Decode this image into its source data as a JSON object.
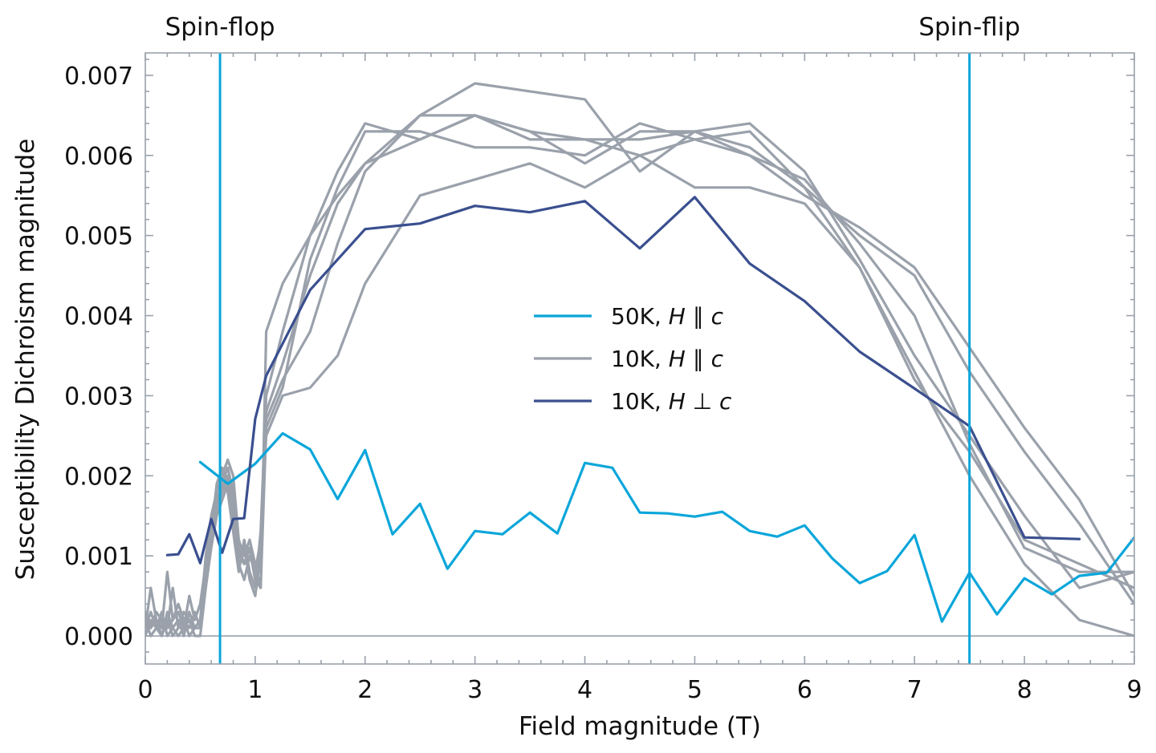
{
  "chart_data": {
    "type": "line",
    "xlabel": "Field magnitude (T)",
    "ylabel": "Susceptibility Dichroism magnitude",
    "xlim": [
      0,
      9
    ],
    "ylim": [
      -0.00035,
      0.00728
    ],
    "xticks": [
      0,
      1,
      2,
      3,
      4,
      5,
      6,
      7,
      8,
      9
    ],
    "xtick_labels": [
      "0",
      "1",
      "2",
      "3",
      "4",
      "5",
      "6",
      "7",
      "8",
      "9"
    ],
    "yticks": [
      0,
      0.001,
      0.002,
      0.003,
      0.004,
      0.005,
      0.006,
      0.007
    ],
    "ytick_labels": [
      "0.000",
      "0.001",
      "0.002",
      "0.003",
      "0.004",
      "0.005",
      "0.006",
      "0.007"
    ],
    "grid": false,
    "legend_position": "center",
    "legend": [
      {
        "text": "50K, ",
        "math": "H ∥ c",
        "color": "#0aa6da"
      },
      {
        "text": "10K, ",
        "math": "H ∥ c",
        "color": "#9aa1ab"
      },
      {
        "text": "10K, ",
        "math": "H ⊥ c",
        "color": "#3a4f8f"
      }
    ],
    "annotations": [
      {
        "text": "Spin-flop",
        "x": 0.68
      },
      {
        "text": "Spin-flip",
        "x": 7.5
      }
    ],
    "vlines": [
      {
        "x": 0.68,
        "color": "#0aa6da"
      },
      {
        "x": 7.5,
        "color": "#0aa6da"
      }
    ],
    "hline": {
      "y": 0,
      "color": "#9aa1ab"
    },
    "series": [
      {
        "group": "10K, H || c",
        "color": "#9aa1ab",
        "x": [
          0,
          0.05,
          0.1,
          0.15,
          0.2,
          0.25,
          0.3,
          0.35,
          0.4,
          0.45,
          0.5,
          0.55,
          0.6,
          0.65,
          0.7,
          0.75,
          0.8,
          0.85,
          0.9,
          0.95,
          1.0,
          1.05,
          1.1,
          1.25,
          1.5,
          1.75,
          2.0,
          2.5,
          3.0,
          3.5,
          4.0,
          4.5,
          5.0,
          5.5,
          6.0,
          6.5,
          7.0,
          7.5,
          8.0,
          8.5,
          9.0
        ],
        "y": [
          0.0001,
          0.0006,
          0.0002,
          0.0001,
          0.0008,
          0.0002,
          0.0003,
          0.0001,
          0.0005,
          0.0002,
          0.0004,
          0.0009,
          0.0012,
          0.0016,
          0.0019,
          0.0021,
          0.0018,
          0.0011,
          0.0009,
          0.0011,
          0.0007,
          0.0006,
          0.0026,
          0.0031,
          0.0047,
          0.0056,
          0.0063,
          0.0063,
          0.0061,
          0.0061,
          0.006,
          0.0064,
          0.0062,
          0.006,
          0.0057,
          0.0049,
          0.004,
          0.0024,
          0.0011,
          0.0008,
          0.0008
        ]
      },
      {
        "group": "10K, H || c",
        "color": "#9aa1ab",
        "x": [
          0,
          0.05,
          0.1,
          0.15,
          0.2,
          0.25,
          0.3,
          0.35,
          0.4,
          0.45,
          0.5,
          0.55,
          0.6,
          0.65,
          0.7,
          0.75,
          0.8,
          0.85,
          0.9,
          0.95,
          1.0,
          1.05,
          1.1,
          1.25,
          1.5,
          1.75,
          2.0,
          2.5,
          3.0,
          3.5,
          4.0,
          4.5,
          5.0,
          5.5,
          6.0,
          6.5,
          7.0,
          7.5,
          8.0,
          8.5,
          9.0
        ],
        "y": [
          0.0002,
          0.0001,
          0.0003,
          0.0002,
          0.0001,
          0.0006,
          0.0001,
          0.0003,
          0.0002,
          0.0001,
          0.0002,
          0.001,
          0.0015,
          0.0018,
          0.002,
          0.0022,
          0.002,
          0.0012,
          0.001,
          0.0012,
          0.0009,
          0.0006,
          0.0038,
          0.0044,
          0.005,
          0.0055,
          0.0059,
          0.0065,
          0.0069,
          0.0068,
          0.0067,
          0.0058,
          0.0063,
          0.0061,
          0.0056,
          0.0046,
          0.0033,
          0.002,
          0.0009,
          0.0002,
          0.0
        ]
      },
      {
        "group": "10K, H || c",
        "color": "#9aa1ab",
        "x": [
          0,
          0.05,
          0.1,
          0.15,
          0.2,
          0.25,
          0.3,
          0.35,
          0.4,
          0.45,
          0.5,
          0.55,
          0.6,
          0.65,
          0.7,
          0.75,
          0.8,
          0.85,
          0.9,
          0.95,
          1.0,
          1.05,
          1.1,
          1.25,
          1.5,
          1.75,
          2.0,
          2.5,
          3.0,
          3.5,
          4.0,
          4.5,
          5.0,
          5.5,
          6.0,
          6.5,
          7.0,
          7.5,
          8.0,
          8.5,
          9.0
        ],
        "y": [
          0.0,
          0.0002,
          0.0001,
          0.0002,
          0.0001,
          0.0002,
          0.0004,
          0.0002,
          0.0001,
          0.0003,
          0.0001,
          0.0008,
          0.0014,
          0.0017,
          0.0019,
          0.0018,
          0.0013,
          0.0008,
          0.0012,
          0.0008,
          0.0006,
          0.0013,
          0.003,
          0.0038,
          0.005,
          0.0058,
          0.0064,
          0.0062,
          0.0065,
          0.0063,
          0.0059,
          0.0063,
          0.0063,
          0.0064,
          0.0058,
          0.0047,
          0.0035,
          0.0025,
          0.0015,
          0.0006,
          0.0008
        ]
      },
      {
        "group": "10K, H || c",
        "color": "#9aa1ab",
        "x": [
          0,
          0.05,
          0.1,
          0.15,
          0.2,
          0.25,
          0.3,
          0.35,
          0.4,
          0.45,
          0.5,
          0.55,
          0.6,
          0.65,
          0.7,
          0.75,
          0.8,
          0.85,
          0.9,
          0.95,
          1.0,
          1.05,
          1.1,
          1.25,
          1.5,
          1.75,
          2.0,
          2.5,
          3.0,
          3.5,
          4.0,
          4.5,
          5.0,
          5.5,
          6.0,
          6.5,
          7.0,
          7.5,
          8.0,
          8.5,
          9.0
        ],
        "y": [
          0.0001,
          0.0003,
          0.0001,
          0.0,
          0.0002,
          0.0,
          0.0001,
          0.0002,
          0.0,
          0.0001,
          0.0002,
          0.0007,
          0.0012,
          0.0016,
          0.0018,
          0.002,
          0.0017,
          0.001,
          0.0011,
          0.0007,
          0.0005,
          0.001,
          0.0028,
          0.0034,
          0.0045,
          0.0054,
          0.0059,
          0.0062,
          0.0065,
          0.0062,
          0.0062,
          0.0062,
          0.0063,
          0.006,
          0.0055,
          0.0051,
          0.0046,
          0.0036,
          0.0026,
          0.0017,
          0.0005
        ]
      },
      {
        "group": "10K, H || c",
        "color": "#9aa1ab",
        "x": [
          0,
          0.05,
          0.1,
          0.15,
          0.2,
          0.25,
          0.3,
          0.35,
          0.4,
          0.45,
          0.5,
          0.55,
          0.6,
          0.65,
          0.7,
          0.75,
          0.8,
          0.85,
          0.9,
          0.95,
          1.0,
          1.05,
          1.1,
          1.25,
          1.5,
          1.75,
          2.0,
          2.5,
          3.0,
          3.5,
          4.0,
          4.5,
          5.0,
          5.5,
          6.0,
          6.5,
          7.0,
          7.5,
          8.0,
          8.5,
          9.0
        ],
        "y": [
          0.0003,
          0.0001,
          0.0002,
          0.0,
          0.0003,
          0.0001,
          0.0002,
          0.0,
          0.0003,
          0.0001,
          0.0001,
          0.0009,
          0.0013,
          0.0019,
          0.0021,
          0.0019,
          0.0014,
          0.0009,
          0.0007,
          0.001,
          0.0008,
          0.0012,
          0.0025,
          0.003,
          0.0031,
          0.0035,
          0.0044,
          0.0055,
          0.0057,
          0.0059,
          0.0056,
          0.006,
          0.0056,
          0.0056,
          0.0054,
          0.0046,
          0.0032,
          0.0023,
          0.0012,
          0.0009,
          0.0006
        ]
      },
      {
        "group": "10K, H || c",
        "color": "#9aa1ab",
        "x": [
          0,
          0.05,
          0.1,
          0.15,
          0.2,
          0.25,
          0.3,
          0.35,
          0.4,
          0.45,
          0.5,
          0.55,
          0.6,
          0.65,
          0.7,
          0.75,
          0.8,
          0.85,
          0.9,
          0.95,
          1.0,
          1.05,
          1.1,
          1.25,
          1.5,
          1.75,
          2.0,
          2.5,
          3.0,
          3.5,
          4.0,
          4.5,
          5.0,
          5.5,
          6.0,
          6.5,
          7.0,
          7.5,
          8.0,
          8.5,
          9.0
        ],
        "y": [
          0.0002,
          0.0,
          0.0001,
          0.0003,
          0.0,
          0.0001,
          0.0,
          0.0001,
          0.0002,
          0.0,
          0.0,
          0.0006,
          0.0011,
          0.0015,
          0.0017,
          0.0019,
          0.0016,
          0.001,
          0.0009,
          0.0011,
          0.0007,
          0.0009,
          0.0027,
          0.0032,
          0.0038,
          0.0049,
          0.0058,
          0.0065,
          0.0065,
          0.0063,
          0.0062,
          0.006,
          0.0062,
          0.0063,
          0.0056,
          0.005,
          0.0045,
          0.0033,
          0.0023,
          0.0014,
          0.0004
        ]
      },
      {
        "group": "50K, H || c",
        "color": "#0aa6da",
        "x": [
          0.5,
          0.75,
          1.0,
          1.25,
          1.5,
          1.75,
          2.0,
          2.25,
          2.5,
          2.75,
          3.0,
          3.25,
          3.5,
          3.75,
          4.0,
          4.25,
          4.5,
          4.75,
          5.0,
          5.25,
          5.5,
          5.75,
          6.0,
          6.25,
          6.5,
          6.75,
          7.0,
          7.25,
          7.5,
          7.75,
          8.0,
          8.25,
          8.5,
          8.75,
          9.0
        ],
        "y": [
          0.00217,
          0.0019,
          0.00215,
          0.00253,
          0.00233,
          0.00171,
          0.00232,
          0.00127,
          0.00165,
          0.00084,
          0.00131,
          0.00127,
          0.00154,
          0.00128,
          0.00216,
          0.0021,
          0.00154,
          0.00153,
          0.00149,
          0.00155,
          0.00131,
          0.00124,
          0.00138,
          0.00097,
          0.00066,
          0.00081,
          0.00126,
          0.00018,
          0.00079,
          0.00027,
          0.00072,
          0.00052,
          0.00075,
          0.00079,
          0.00123
        ]
      },
      {
        "group": "10K, H perp c",
        "color": "#3a4f8f",
        "x": [
          0.2,
          0.3,
          0.4,
          0.5,
          0.6,
          0.7,
          0.8,
          0.9,
          1.0,
          1.1,
          1.5,
          2.0,
          2.5,
          3.0,
          3.5,
          4.0,
          4.5,
          5.0,
          5.5,
          6.0,
          6.5,
          7.0,
          7.5,
          8.0,
          8.5
        ],
        "y": [
          0.00101,
          0.00102,
          0.00127,
          0.00091,
          0.00146,
          0.00104,
          0.00146,
          0.00147,
          0.00271,
          0.00325,
          0.00432,
          0.00508,
          0.00515,
          0.00537,
          0.00529,
          0.00543,
          0.00484,
          0.00548,
          0.00465,
          0.00418,
          0.00355,
          0.00309,
          0.00262,
          0.00123,
          0.00121
        ]
      }
    ]
  }
}
